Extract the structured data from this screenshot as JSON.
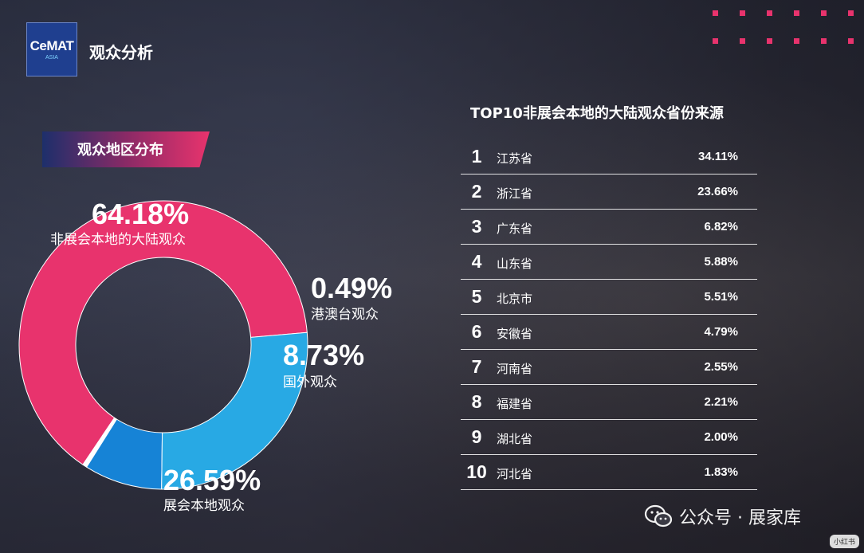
{
  "header": {
    "logo_main": "CeMAT",
    "logo_sub": "ASIA",
    "title": "观众分析"
  },
  "section_title": "观众地区分布",
  "table_title": "TOP10非展会本地的大陆观众省份来源",
  "chart_data": [
    {
      "type": "pie",
      "donut": true,
      "title": "观众地区分布",
      "slices": [
        {
          "label": "非展会本地的大陆观众",
          "value": 64.18,
          "display": "64.18%",
          "color": "#e8336d"
        },
        {
          "label": "港澳台观众",
          "value": 0.49,
          "display": "0.49%",
          "color": "#ffffff"
        },
        {
          "label": "国外观众",
          "value": 8.73,
          "display": "8.73%",
          "color": "#1683d6"
        },
        {
          "label": "展会本地观众",
          "value": 26.59,
          "display": "26.59%",
          "color": "#28a9e4"
        }
      ]
    },
    {
      "type": "table",
      "title": "TOP10非展会本地的大陆观众省份来源",
      "rows": [
        {
          "rank": "1",
          "name": "江苏省",
          "value": "34.11%"
        },
        {
          "rank": "2",
          "name": "浙江省",
          "value": "23.66%"
        },
        {
          "rank": "3",
          "name": "广东省",
          "value": "6.82%"
        },
        {
          "rank": "4",
          "name": "山东省",
          "value": "5.88%"
        },
        {
          "rank": "5",
          "name": "北京市",
          "value": "5.51%"
        },
        {
          "rank": "6",
          "name": "安徽省",
          "value": "4.79%"
        },
        {
          "rank": "7",
          "name": "河南省",
          "value": "2.55%"
        },
        {
          "rank": "8",
          "name": "福建省",
          "value": "2.21%"
        },
        {
          "rank": "9",
          "name": "湖北省",
          "value": "2.00%"
        },
        {
          "rank": "10",
          "name": "河北省",
          "value": "1.83%"
        }
      ]
    }
  ],
  "watermark": {
    "text": "公众号 · 展家库",
    "badge": "小红书"
  },
  "colors": {
    "accent": "#e8336d",
    "dark_blue": "#1f3f8f"
  },
  "icons": {
    "wechat": "wechat-icon",
    "decoration": "dot-grid-icon"
  }
}
